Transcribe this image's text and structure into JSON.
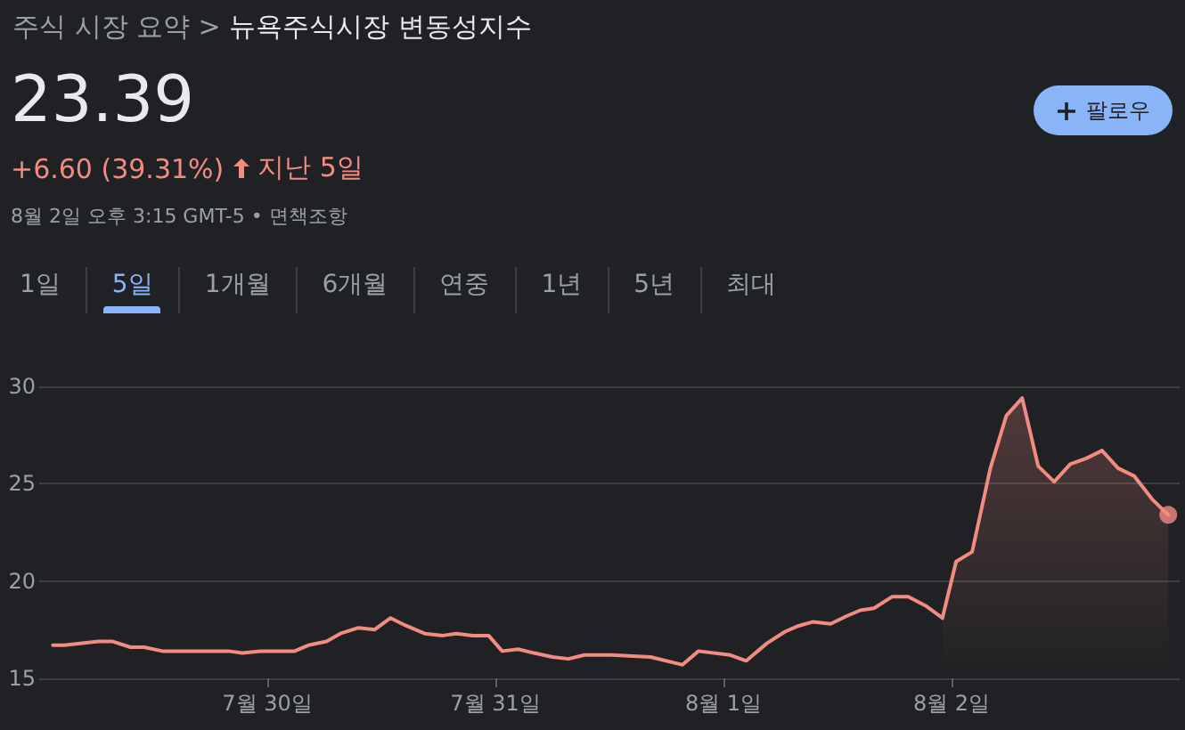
{
  "chart_data": {
    "type": "line",
    "title": "뉴욕주식시장 변동성지수",
    "annotations": [
      "주식 시장 요약 >",
      "23.39",
      "+6.60 (39.31%)",
      "지난 5일",
      "8월 2일 오후 3:15 GMT-5 • 면책조항",
      "팔로우",
      "1일",
      "5일",
      "1개월",
      "6개월",
      "연중",
      "1년",
      "5년",
      "최대"
    ],
    "xlim": [
      "--07-29",
      "--08-03"
    ],
    "xticks": [
      {
        "value": "--07-30",
        "label": "7월 30일"
      },
      {
        "value": "--07-31",
        "label": "7월 31일"
      },
      {
        "value": "--08-01",
        "label": "8월 1일"
      },
      {
        "value": "--08-02",
        "label": "8월 2일"
      }
    ],
    "ylim": [
      15,
      30
    ],
    "yticks": [
      15,
      20,
      25,
      30
    ],
    "grid": "y",
    "line_style": "solid",
    "series": [
      {
        "color": "#f28b82",
        "marker": "none",
        "x": [
          "--07-29T01:26",
          "--07-29T02:38",
          "--07-29T04:19",
          "--07-29T06:14",
          "--07-29T07:41",
          "--07-29T09:36",
          "--07-29T11:02",
          "--07-29T12:58",
          "--07-29T15:07",
          "--07-29T17:02",
          "--07-29T19:55",
          "--07-29T21:22",
          "--07-29T23:17",
          "--07-30T02:53",
          "--07-30T04:19",
          "--07-30T06:14",
          "--07-30T07:41",
          "--07-30T09:36",
          "--07-30T11:17",
          "--07-30T12:58",
          "--07-30T14:38",
          "--07-30T16:34",
          "--07-30T18:29",
          "--07-30T19:55",
          "--07-30T21:36",
          "--07-30T23:17",
          "--07-31T00:43",
          "--07-31T02:24",
          "--07-31T04:05",
          "--07-31T06:00",
          "--07-31T07:41",
          "--07-31T09:22",
          "--07-31T12:14",
          "--07-31T16:19",
          "--07-31T19:41",
          "--07-31T21:22",
          "--08-01T00:43",
          "--08-01T02:24",
          "--08-01T04:34",
          "--08-01T06:29",
          "--08-01T07:55",
          "--08-01T09:22",
          "--08-01T11:17",
          "--08-01T12:58",
          "--08-01T14:24",
          "--08-01T15:50",
          "--08-01T17:46",
          "--08-01T19:26",
          "--08-01T21:22",
          "--08-01T23:02"
        ],
        "values": [
          16.7,
          16.7,
          16.8,
          16.9,
          16.9,
          16.6,
          16.6,
          16.4,
          16.4,
          16.4,
          16.4,
          16.3,
          16.4,
          16.4,
          16.7,
          16.9,
          17.3,
          17.6,
          17.5,
          18.1,
          17.7,
          17.3,
          17.2,
          17.3,
          17.2,
          17.2,
          16.4,
          16.5,
          16.3,
          16.1,
          16.0,
          16.2,
          16.2,
          16.1,
          15.7,
          16.4,
          16.2,
          15.9,
          16.8,
          17.4,
          17.7,
          17.9,
          17.8,
          18.2,
          18.5,
          18.6,
          19.2,
          19.2,
          18.7,
          18.1
        ]
      },
      {
        "type": "area",
        "color": "#f28b82",
        "marker": "none",
        "x": [
          "--08-01T23:02",
          "--08-02T00:29",
          "--08-02T02:10",
          "--08-02T04:05",
          "--08-02T05:46",
          "--08-02T07:26",
          "--08-02T09:07",
          "--08-02T10:48",
          "--08-02T12:29",
          "--08-02T14:10",
          "--08-02T15:50",
          "--08-02T17:31",
          "--08-02T19:12",
          "--08-02T21:07",
          "--08-02T22:48"
        ],
        "values": [
          18.1,
          21.0,
          21.5,
          25.8,
          28.5,
          29.4,
          25.9,
          25.1,
          26.0,
          26.3,
          26.7,
          25.8,
          25.4,
          24.2,
          23.4
        ]
      },
      {
        "type": "scatter",
        "color": "#f28b82",
        "marker": "circle",
        "x": [
          "--08-02T22:48"
        ],
        "values": [
          23.4
        ]
      }
    ]
  }
}
